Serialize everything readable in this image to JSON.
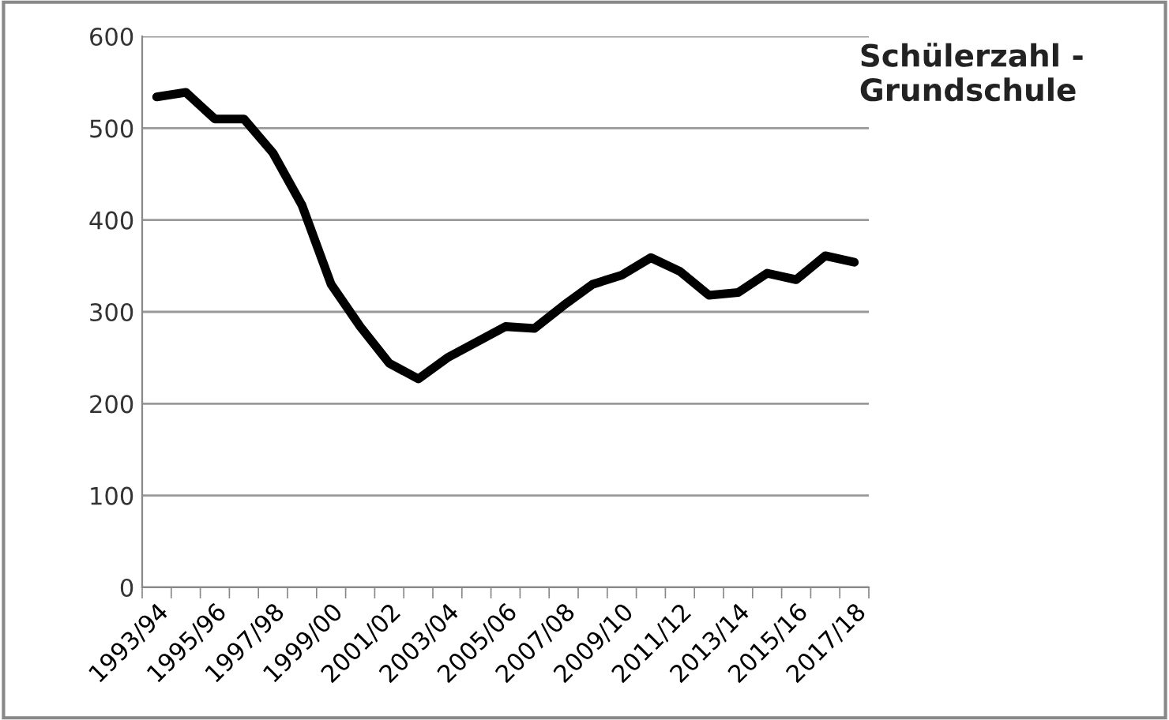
{
  "chart_data": {
    "type": "line",
    "title": "Schülerzahl -\nGrundschule",
    "categories": [
      "1993/94",
      null,
      "1995/96",
      null,
      "1997/98",
      null,
      "1999/00",
      null,
      "2001/02",
      null,
      "2003/04",
      null,
      "2005/06",
      null,
      "2007/08",
      null,
      "2009/10",
      null,
      "2011/12",
      null,
      "2013/14",
      null,
      "2015/16",
      null,
      "2017/18"
    ],
    "series": [
      {
        "color": "#000000",
        "values": [
          534,
          539,
          510,
          510,
          473,
          416,
          330,
          284,
          244,
          227,
          250,
          267,
          284,
          282,
          307,
          330,
          340,
          359,
          344,
          318,
          321,
          342,
          335,
          361,
          354
        ]
      }
    ],
    "ylim": [
      0,
      600
    ],
    "yticks": [
      0,
      100,
      200,
      300,
      400,
      500,
      600
    ],
    "grid": "y",
    "legend": false,
    "marker": "none",
    "line_style": "solid"
  }
}
